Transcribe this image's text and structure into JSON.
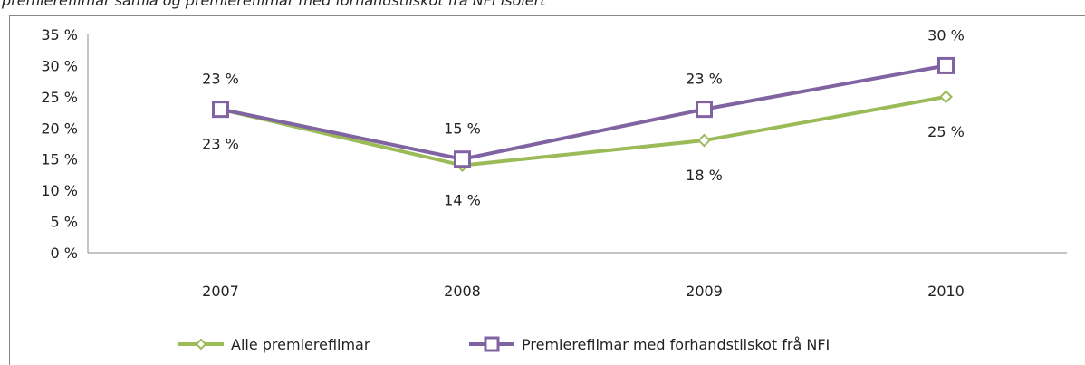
{
  "chart_data": {
    "type": "line",
    "title": "premierefilmar samla og premierefilmar med forhandstilskot frå NFI isolert",
    "categories": [
      "2007",
      "2008",
      "2009",
      "2010"
    ],
    "series": [
      {
        "name": "Alle premierefilmar",
        "color": "#9bbb59",
        "marker": "diamond",
        "values": [
          23,
          14,
          18,
          25
        ],
        "value_labels": [
          "23 %",
          "14 %",
          "18 %",
          "25 %"
        ]
      },
      {
        "name": "Premierefilmar med forhandstilskot frå NFI",
        "color": "#8064a2",
        "marker": "square",
        "values": [
          23,
          15,
          23,
          30
        ],
        "value_labels": [
          "23 %",
          "15 %",
          "23 %",
          "30 %"
        ]
      }
    ],
    "ylim": [
      0,
      35
    ],
    "yticks": [
      {
        "value": 0,
        "label": "0 %"
      },
      {
        "value": 5,
        "label": "5 %"
      },
      {
        "value": 10,
        "label": "10 %"
      },
      {
        "value": 15,
        "label": "15 %"
      },
      {
        "value": 20,
        "label": "20 %"
      },
      {
        "value": 25,
        "label": "25 %"
      },
      {
        "value": 30,
        "label": "30 %"
      },
      {
        "value": 35,
        "label": "35 %"
      }
    ],
    "grid": false,
    "legend": "bottom"
  }
}
